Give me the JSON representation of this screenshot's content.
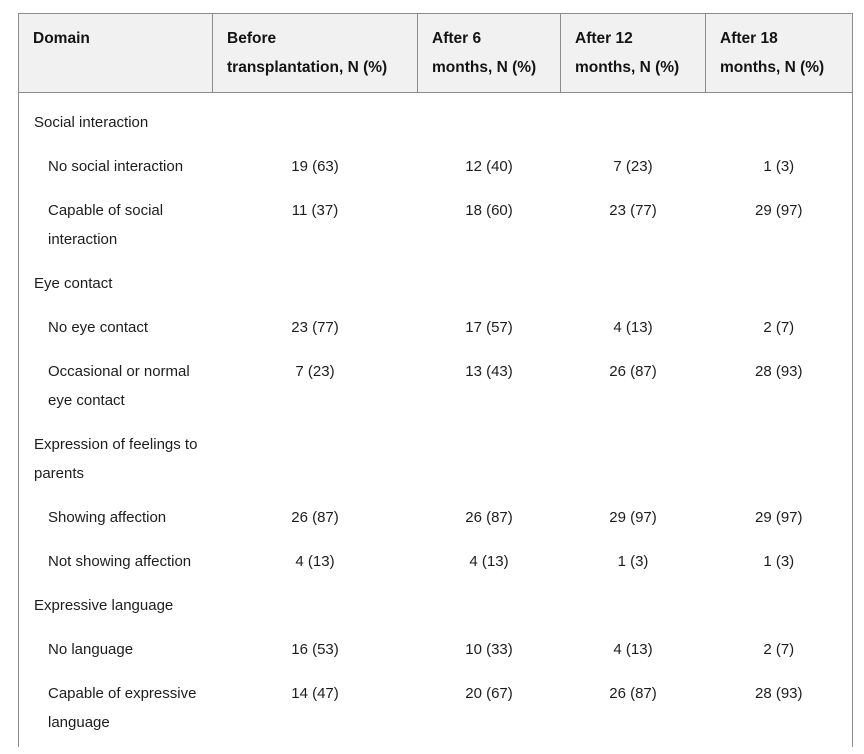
{
  "colors": {
    "header_bg": "#f1f1f1",
    "border": "#8c8c8c",
    "text": "#1d1d1d",
    "page_bg": "#ffffff"
  },
  "table": {
    "header": [
      {
        "line1": "Domain",
        "line2": ""
      },
      {
        "line1": "Before",
        "line2": "transplantation, N (%)"
      },
      {
        "line1": "After 6",
        "line2": "months, N (%)"
      },
      {
        "line1": "After 12",
        "line2": "months, N (%)"
      },
      {
        "line1": "After 18",
        "line2": "months, N (%)"
      }
    ],
    "rows": [
      {
        "type": "category",
        "label": "Social interaction",
        "values": [
          "",
          "",
          "",
          ""
        ]
      },
      {
        "type": "item",
        "label": "No social interaction",
        "values": [
          "19 (63)",
          "12 (40)",
          "7 (23)",
          "1 (3)"
        ]
      },
      {
        "type": "item",
        "label": "Capable of social interaction",
        "values": [
          "11 (37)",
          "18 (60)",
          "23 (77)",
          "29 (97)"
        ]
      },
      {
        "type": "category",
        "label": "Eye contact",
        "values": [
          "",
          "",
          "",
          ""
        ]
      },
      {
        "type": "item",
        "label": "No eye contact",
        "values": [
          "23 (77)",
          "17 (57)",
          "4 (13)",
          "2 (7)"
        ]
      },
      {
        "type": "item",
        "label": "Occasional or normal eye contact",
        "values": [
          "7 (23)",
          "13 (43)",
          "26 (87)",
          "28 (93)"
        ]
      },
      {
        "type": "category",
        "label": "Expression of feelings to parents",
        "values": [
          "",
          "",
          "",
          ""
        ]
      },
      {
        "type": "item",
        "label": "Showing affection",
        "values": [
          "26 (87)",
          "26 (87)",
          "29 (97)",
          "29 (97)"
        ]
      },
      {
        "type": "item",
        "label": "Not showing affection",
        "values": [
          "4 (13)",
          "4 (13)",
          "1 (3)",
          "1 (3)"
        ]
      },
      {
        "type": "category",
        "label": "Expressive language",
        "values": [
          "",
          "",
          "",
          ""
        ]
      },
      {
        "type": "item",
        "label": "No language",
        "values": [
          "16 (53)",
          "10 (33)",
          "4 (13)",
          "2 (7)"
        ]
      },
      {
        "type": "item",
        "label": "Capable of expressive language",
        "values": [
          "14 (47)",
          "20 (67)",
          "26 (87)",
          "28 (93)"
        ]
      }
    ]
  }
}
